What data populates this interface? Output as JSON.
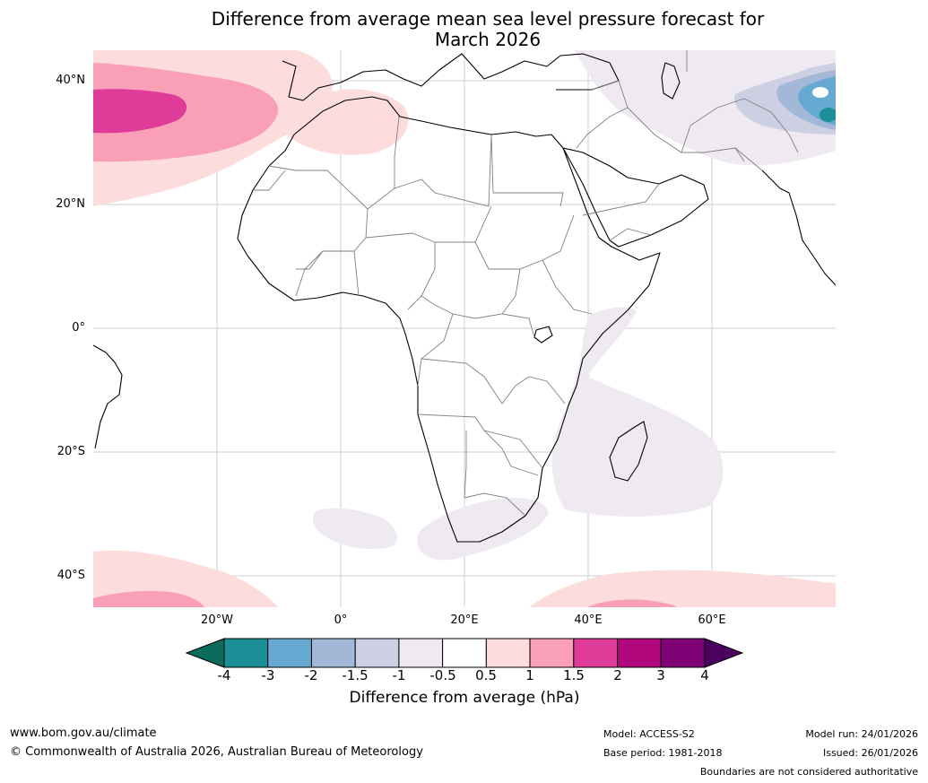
{
  "map": {
    "title_line1": "Difference from average mean sea level pressure forecast for",
    "title_line2": "March 2026",
    "lat_labels": [
      "40°N",
      "20°N",
      "0°",
      "20°S",
      "40°S"
    ],
    "lon_labels": [
      "20°W",
      "0°",
      "20°E",
      "40°E",
      "60°E"
    ],
    "colorbar": {
      "ticks": [
        "-4",
        "-3",
        "-2",
        "-1.5",
        "-1",
        "-0.5",
        "0.5",
        "1",
        "1.5",
        "2",
        "3",
        "4"
      ],
      "colors": [
        "#1a8f96",
        "#66aad2",
        "#a3b7d6",
        "#cdcfe3",
        "#efeaf2",
        "#ffffff",
        "#fddcdc",
        "#f9a0b8",
        "#de3c98",
        "#b2087e",
        "#7d0377"
      ],
      "low_extend_color": "#0b6c5e",
      "high_extend_color": "#4c035f",
      "label": "Difference from average (hPa)"
    }
  },
  "footer": {
    "site": "www.bom.gov.au/climate",
    "copyright": "© Commonwealth of Australia 2026, Australian Bureau of Meteorology",
    "model": "Model: ACCESS-S2",
    "base_period": "Base period: 1981-2018",
    "model_run": "Model run: 24/01/2026",
    "issued": "Issued: 26/01/2026",
    "disclaimer": "Boundaries are not considered authoritative"
  }
}
